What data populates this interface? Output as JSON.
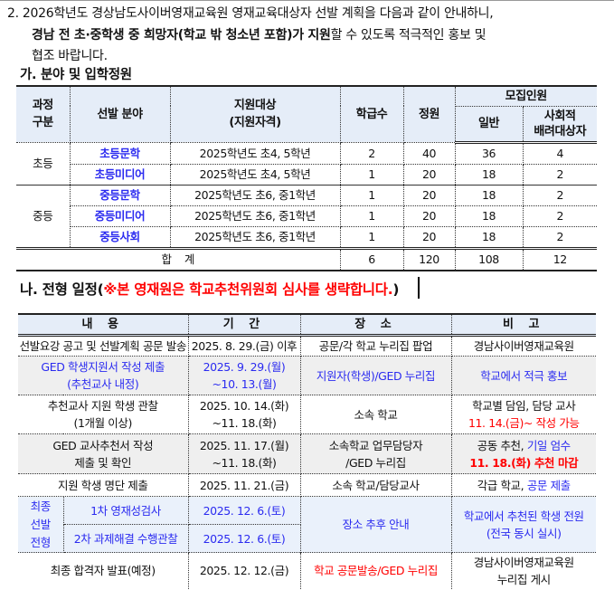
{
  "intro": {
    "line1": "2.  2026학년도 경상남도사이버영재교육원 영재교육대상자 선발 계획을 다음과 같이 안내하니,",
    "line2_bold": "경남 전 초·중학생 중 희망자(학교 밖 청소년 포함)가 지원",
    "line2_rest": "할 수 있도록 적극적인 홍보 및",
    "line3": "협조 바랍니다."
  },
  "section_a": {
    "title": "가. 분야 및 입학정원",
    "headers": {
      "course": "과정\n구분",
      "field": "선발 분야",
      "target": "지원대상\n(지원자격)",
      "classes": "학급수",
      "quota": "정원",
      "recruit": "모집인원",
      "general": "일반",
      "social": "사회적\n배려대상자"
    },
    "rows": [
      {
        "course": "초등",
        "field": "초등문학",
        "target": "2025학년도 초4, 5학년",
        "classes": "2",
        "quota": "40",
        "general": "36",
        "social": "4"
      },
      {
        "field": "초등미디어",
        "target": "2025학년도 초4, 5학년",
        "classes": "1",
        "quota": "20",
        "general": "18",
        "social": "2"
      },
      {
        "course": "중등",
        "field": "중등문학",
        "target": "2025학년도 초6, 중1학년",
        "classes": "1",
        "quota": "20",
        "general": "18",
        "social": "2"
      },
      {
        "field": "중등미디어",
        "target": "2025학년도 초6, 중1학년",
        "classes": "1",
        "quota": "20",
        "general": "18",
        "social": "2"
      },
      {
        "field": "중등사회",
        "target": "2025학년도 초6, 중1학년",
        "classes": "1",
        "quota": "20",
        "general": "18",
        "social": "2"
      }
    ],
    "total": {
      "label": "합    계",
      "classes": "6",
      "quota": "120",
      "general": "108",
      "social": "12"
    }
  },
  "section_b": {
    "title": "나. 전형 일정(",
    "title_red": "※본 영재원은 학교추천위원회 심사를 생략합니다.",
    "title_end": ")",
    "headers": [
      "내 용",
      "기 간",
      "장 소",
      "비 고"
    ],
    "rows": [
      {
        "content": "선발요강 공고 및 선발계획 공문 발송",
        "period": "2025. 8. 29.(금) 이후",
        "place": "공문/각 학교 누리집 팝업",
        "note": "경남사이버영재교육원"
      },
      {
        "content": [
          "GED 학생지원서 작성 제출",
          "(추천교사 내정)"
        ],
        "period": [
          "2025. 9. 29.(월)",
          "~10. 13.(월)"
        ],
        "place": "지원자(학생)/GED 누리집",
        "note": "학교에서 적극 홍보"
      },
      {
        "content": [
          "추천교사 지원 학생 관찰",
          "(1개월 이상)"
        ],
        "period": [
          "2025. 10. 14.(화)",
          "~11. 18.(화)"
        ],
        "place": "소속 학교",
        "note": [
          "학교별 담임, 담당 교사",
          "11. 14.(금)~ 작성 가능"
        ]
      },
      {
        "content": [
          "GED 교사추천서 작성",
          "제출 및 확인"
        ],
        "period": [
          "2025. 11. 17.(월)",
          "~11. 18.(화)"
        ],
        "place": [
          "소속학교 업무담당자",
          "/GED 누리집"
        ],
        "note": [
          "공동 추천, ",
          "기일 엄수",
          "11. 18.(화) 추천 마감"
        ]
      },
      {
        "content": "지원 학생 명단 제출",
        "period": "2025. 11. 21.(금)",
        "place": "소속 학교/담당교사",
        "note": [
          "각급 학교, ",
          "공문 제출"
        ]
      },
      {
        "group": [
          "최종",
          "선발",
          "전형"
        ],
        "content": "1차 영재성검사",
        "period": "2025. 12. 6.(토)",
        "place": "장소 추후 안내",
        "note": [
          "학교에서 추천된 학생 전원",
          "(전국 동시 실시)"
        ]
      },
      {
        "content": "2차 과제해결 수행관찰",
        "period": "2025. 12. 6.(토)"
      },
      {
        "content": "최종 합격자 발표(예정)",
        "period": "2025. 12. 12.(금)",
        "place": "학교 공문발송/GED 누리집",
        "note": [
          "경남사이버영재교육원",
          "누리집 게시"
        ]
      }
    ]
  },
  "colors": {
    "header_bg": "#e5edf8",
    "gray_row": "#efefef",
    "blue_block": "#eaf1fb",
    "blue_text": "#2b2bf0",
    "red_text": "#ff0000"
  }
}
